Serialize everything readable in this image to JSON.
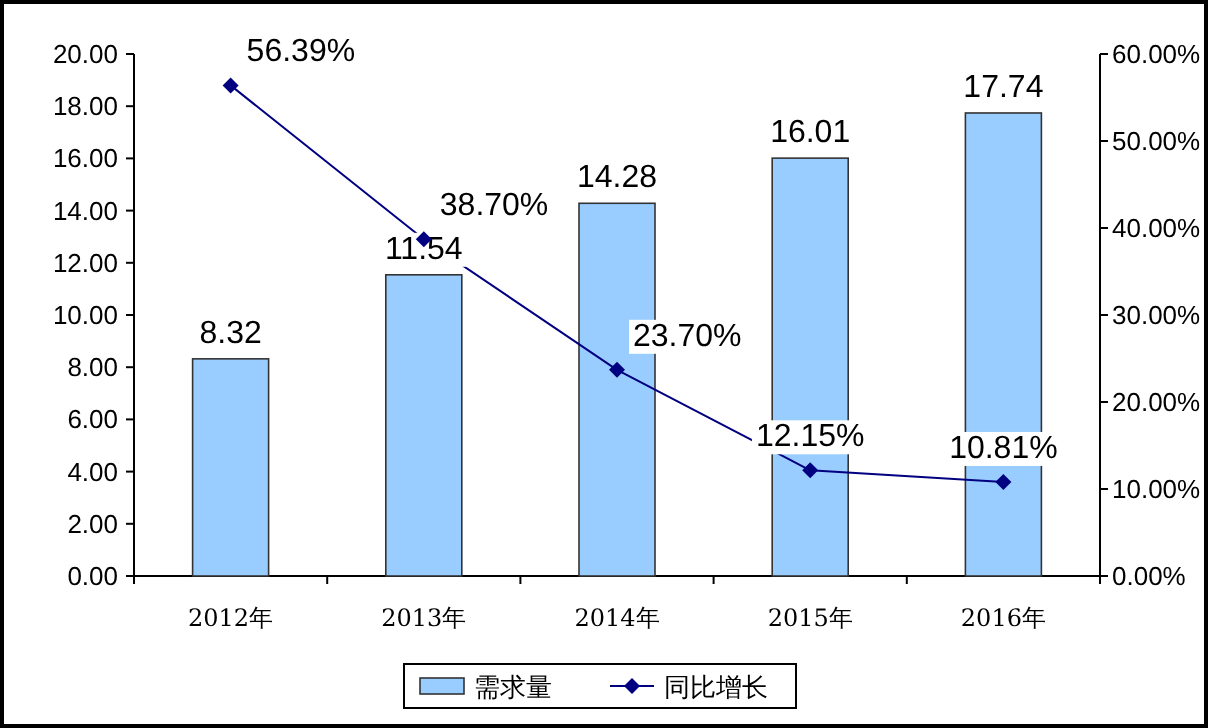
{
  "chart_data": {
    "type": "bar",
    "categories": [
      "2012年",
      "2013年",
      "2014年",
      "2015年",
      "2016年"
    ],
    "series": [
      {
        "name": "需求量",
        "color": "#99ccff",
        "values": [
          8.32,
          11.54,
          14.28,
          16.01,
          17.74
        ],
        "value_labels": [
          "8.32",
          "11.54",
          "14.28",
          "16.01",
          "17.74"
        ]
      },
      {
        "name": "同比增长",
        "type": "line",
        "axis": "y2",
        "color": "#000080",
        "marker": "diamond",
        "values": [
          56.39,
          38.7,
          23.7,
          12.15,
          10.81
        ],
        "value_labels": [
          "56.39%",
          "38.70%",
          "23.70%",
          "12.15%",
          "10.81%"
        ]
      }
    ],
    "ylim": [
      0,
      20
    ],
    "yticks": [
      {
        "value": 0,
        "label": "0.00"
      },
      {
        "value": 2,
        "label": "2.00"
      },
      {
        "value": 4,
        "label": "4.00"
      },
      {
        "value": 6,
        "label": "6.00"
      },
      {
        "value": 8,
        "label": "8.00"
      },
      {
        "value": 10,
        "label": "10.00"
      },
      {
        "value": 12,
        "label": "12.00"
      },
      {
        "value": 14,
        "label": "14.00"
      },
      {
        "value": 16,
        "label": "16.00"
      },
      {
        "value": 18,
        "label": "18.00"
      },
      {
        "value": 20,
        "label": "20.00"
      }
    ],
    "y2lim": [
      0,
      60
    ],
    "y2ticks": [
      {
        "value": 0,
        "label": "0.00%"
      },
      {
        "value": 10,
        "label": "10.00%"
      },
      {
        "value": 20,
        "label": "20.00%"
      },
      {
        "value": 30,
        "label": "30.00%"
      },
      {
        "value": 40,
        "label": "40.00%"
      },
      {
        "value": 50,
        "label": "50.00%"
      },
      {
        "value": 60,
        "label": "60.00%"
      }
    ],
    "legend": "bottom"
  }
}
